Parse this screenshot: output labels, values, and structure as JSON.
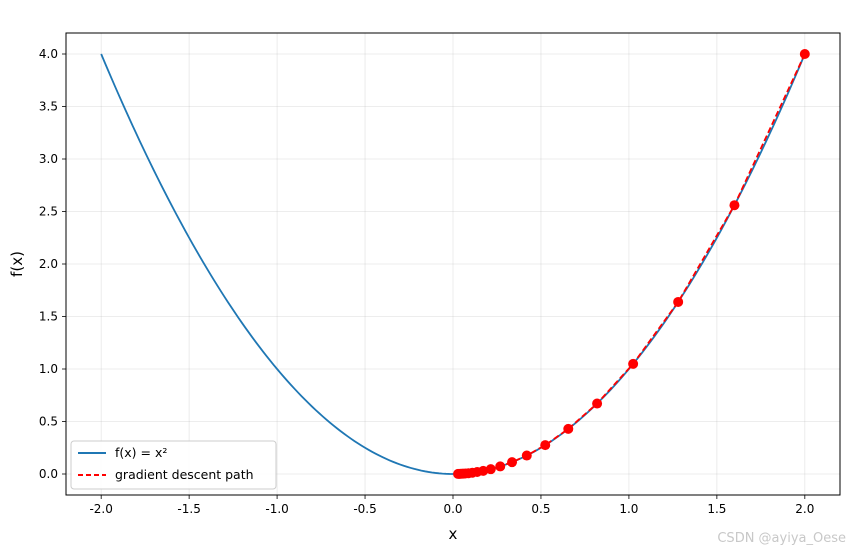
{
  "chart_data": {
    "type": "line",
    "title": "",
    "xlabel": "x",
    "ylabel": "f(x)",
    "xlim": [
      -2.2,
      2.2
    ],
    "ylim": [
      -0.2,
      4.2
    ],
    "x_ticks": [
      -2.0,
      -1.5,
      -1.0,
      -0.5,
      0.0,
      0.5,
      1.0,
      1.5,
      2.0
    ],
    "y_ticks": [
      0.0,
      0.5,
      1.0,
      1.5,
      2.0,
      2.5,
      3.0,
      3.5,
      4.0
    ],
    "x_tick_labels": [
      "-2.0",
      "-1.5",
      "-1.0",
      "-0.5",
      "0.0",
      "0.5",
      "1.0",
      "1.5",
      "2.0"
    ],
    "y_tick_labels": [
      "0.0",
      "0.5",
      "1.0",
      "1.5",
      "2.0",
      "2.5",
      "3.0",
      "3.5",
      "4.0"
    ],
    "grid": true,
    "legend_position": "lower-left",
    "series": [
      {
        "name": "f(x) = x²",
        "style": "solid",
        "color": "#1f77b4",
        "function": "x^2",
        "x_range": [
          -2.0,
          2.0
        ]
      },
      {
        "name": "gradient descent path",
        "style": "dashed",
        "color": "#ff0000",
        "marker": "circle",
        "marker_color": "#ff0000",
        "x": [
          2.0,
          1.6,
          1.28,
          1.024,
          0.8192,
          0.65536,
          0.524288,
          0.4194304,
          0.33554432,
          0.268435456,
          0.2147483648,
          0.17179869184,
          0.137438953472,
          0.1099511627776,
          0.08796093022208,
          0.070368744177664,
          0.0562949953421312,
          0.04503599627370496,
          0.03602879701896397,
          0.028823037615171174
        ],
        "y": [
          4.0,
          2.56,
          1.6384,
          1.048576,
          0.67108864,
          0.4294967296,
          0.274877906944,
          0.17592186044416,
          0.1125899906842624,
          0.07205759403792794,
          0.04611686018427388,
          0.029514790517935284,
          0.018889465931478583,
          0.012089258196146292,
          0.0077371252455336265,
          0.0049517601571415215,
          0.0031691265005705737,
          0.002028240960365167,
          0.0012980742146337068,
          0.0008307674973655724
        ]
      }
    ]
  },
  "watermark": "CSDN @ayiya_Oese"
}
